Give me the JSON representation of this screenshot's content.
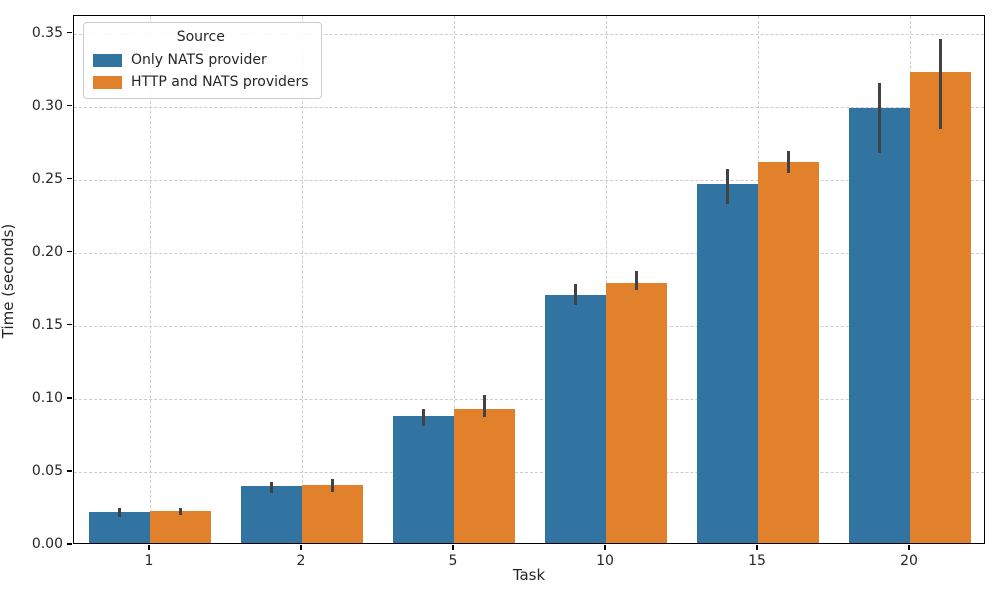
{
  "chart_data": {
    "type": "bar",
    "title": "",
    "xlabel": "Task",
    "ylabel": "Time (seconds)",
    "categories": [
      "1",
      "2",
      "5",
      "10",
      "15",
      "20"
    ],
    "series": [
      {
        "name": "Only NATS provider",
        "color": "#3274a1",
        "values": [
          0.021,
          0.039,
          0.087,
          0.17,
          0.246,
          0.298
        ],
        "ci_low": [
          0.018,
          0.034,
          0.08,
          0.163,
          0.232,
          0.267
        ],
        "ci_high": [
          0.024,
          0.042,
          0.092,
          0.177,
          0.256,
          0.315
        ]
      },
      {
        "name": "HTTP and NATS providers",
        "color": "#e1812c",
        "values": [
          0.022,
          0.04,
          0.092,
          0.178,
          0.261,
          0.322
        ],
        "ci_low": [
          0.019,
          0.035,
          0.086,
          0.173,
          0.253,
          0.283
        ],
        "ci_high": [
          0.024,
          0.044,
          0.101,
          0.186,
          0.268,
          0.345
        ]
      }
    ],
    "ylim": [
      0,
      0.362
    ],
    "yticks": [
      0.0,
      0.05,
      0.1,
      0.15,
      0.2,
      0.25,
      0.3,
      0.35
    ],
    "ytick_labels": [
      "0.00",
      "0.05",
      "0.10",
      "0.15",
      "0.20",
      "0.25",
      "0.30",
      "0.35"
    ],
    "legend_title": "Source",
    "legend_position": "upper left",
    "grid": "dashed, horizontal and vertical",
    "errorbar_color": "#424242"
  }
}
